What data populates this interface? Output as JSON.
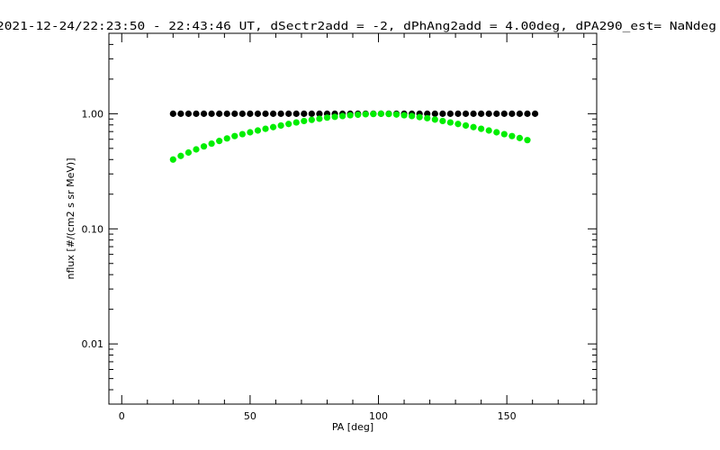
{
  "chart_data": {
    "type": "scatter",
    "title": "2021-12-24/22:23:50 - 22:43:46 UT, dSectr2add = -2, dPhAng2add = 4.00deg, dPA290_est=   NaNdeg",
    "xlabel": "PA [deg]",
    "ylabel": "nflux [#/(cm2 s sr MeV)]",
    "xlim": [
      -5,
      185
    ],
    "ylim": [
      0.003,
      5
    ],
    "yscale": "log",
    "xticks": [
      0,
      50,
      100,
      150
    ],
    "xtick_labels": [
      "0",
      "50",
      "100",
      "150"
    ],
    "yticks": [
      0.01,
      0.1,
      1.0
    ],
    "ytick_labels": [
      "0.01",
      "0.10",
      "1.00"
    ],
    "grid": false,
    "series": [
      {
        "color": "#000000",
        "x": [
          20,
          23,
          26,
          29,
          32,
          35,
          38,
          41,
          44,
          47,
          50,
          53,
          56,
          59,
          62,
          65,
          68,
          71,
          74,
          77,
          80,
          83,
          86,
          89,
          92,
          95,
          98,
          101,
          104,
          107,
          110,
          113,
          116,
          119,
          122,
          125,
          128,
          131,
          134,
          137,
          140,
          143,
          146,
          149,
          152,
          155,
          158,
          161
        ],
        "y": [
          1,
          1,
          1,
          1,
          1,
          1,
          1,
          1,
          1,
          1,
          1,
          1,
          1,
          1,
          1,
          1,
          1,
          1,
          1,
          1,
          1,
          1,
          1,
          1,
          1,
          1,
          1,
          1,
          1,
          1,
          1,
          1,
          1,
          1,
          1,
          1,
          1,
          1,
          1,
          1,
          1,
          1,
          1,
          1,
          1,
          1,
          1,
          1
        ]
      },
      {
        "color": "#00ee00",
        "x": [
          20,
          23,
          26,
          29,
          32,
          35,
          38,
          41,
          44,
          47,
          50,
          53,
          56,
          59,
          62,
          65,
          68,
          71,
          74,
          77,
          80,
          83,
          86,
          89,
          92,
          95,
          98,
          101,
          104,
          107,
          110,
          113,
          116,
          119,
          122,
          125,
          128,
          131,
          134,
          137,
          140,
          143,
          146,
          149,
          152,
          155,
          158
        ],
        "y": [
          0.4,
          0.43,
          0.46,
          0.49,
          0.52,
          0.55,
          0.58,
          0.61,
          0.64,
          0.665,
          0.69,
          0.715,
          0.74,
          0.765,
          0.79,
          0.815,
          0.84,
          0.865,
          0.885,
          0.905,
          0.925,
          0.94,
          0.955,
          0.97,
          0.98,
          0.99,
          0.995,
          1.0,
          0.995,
          0.985,
          0.97,
          0.955,
          0.935,
          0.915,
          0.89,
          0.865,
          0.84,
          0.815,
          0.79,
          0.765,
          0.74,
          0.715,
          0.69,
          0.665,
          0.64,
          0.615,
          0.59
        ]
      }
    ]
  }
}
